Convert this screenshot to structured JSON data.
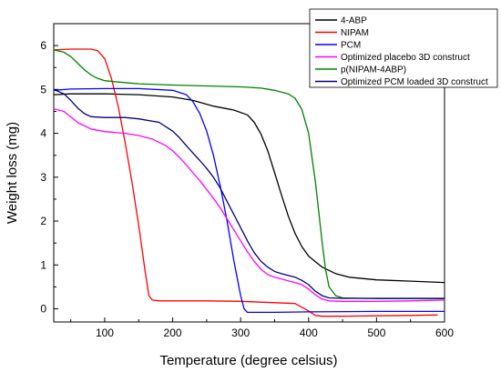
{
  "chart_data": {
    "type": "line",
    "title": "",
    "xlabel": "Temperature (degree celsius)",
    "ylabel": "Weight loss (mg)",
    "xlim": [
      25,
      600
    ],
    "ylim": [
      -0.3,
      6.5
    ],
    "xticks": [
      100,
      200,
      300,
      400,
      500,
      600
    ],
    "yticks": [
      0,
      1,
      2,
      3,
      4,
      5,
      6
    ],
    "grid": false,
    "legend_position": "top-right",
    "series": [
      {
        "name": "4-ABP",
        "color": "#000000",
        "x": [
          25,
          50,
          100,
          150,
          200,
          230,
          260,
          290,
          310,
          320,
          330,
          340,
          350,
          360,
          370,
          380,
          390,
          400,
          420,
          440,
          460,
          500,
          550,
          600
        ],
        "y": [
          4.88,
          4.9,
          4.9,
          4.88,
          4.83,
          4.75,
          4.62,
          4.53,
          4.42,
          4.25,
          3.98,
          3.6,
          3.1,
          2.6,
          2.12,
          1.72,
          1.42,
          1.2,
          0.95,
          0.8,
          0.72,
          0.66,
          0.63,
          0.6
        ]
      },
      {
        "name": "NIPAM",
        "color": "#ff0000",
        "x": [
          25,
          50,
          80,
          90,
          100,
          110,
          120,
          130,
          140,
          150,
          160,
          165,
          170,
          180,
          200,
          250,
          300,
          380,
          400,
          410,
          420,
          450,
          500,
          550,
          590
        ],
        "y": [
          5.9,
          5.92,
          5.92,
          5.88,
          5.7,
          5.25,
          4.6,
          3.8,
          2.9,
          1.9,
          0.8,
          0.3,
          0.2,
          0.18,
          0.18,
          0.18,
          0.17,
          0.12,
          -0.05,
          -0.15,
          -0.17,
          -0.17,
          -0.16,
          -0.15,
          -0.14
        ]
      },
      {
        "name": "PCM",
        "color": "#0000ff",
        "x": [
          25,
          50,
          100,
          150,
          200,
          220,
          230,
          240,
          250,
          260,
          270,
          280,
          290,
          300,
          305,
          310,
          320,
          350,
          400,
          500,
          600
        ],
        "y": [
          4.98,
          5.01,
          5.02,
          5.02,
          4.98,
          4.88,
          4.72,
          4.45,
          4.05,
          3.5,
          2.8,
          2.0,
          1.1,
          0.3,
          0.0,
          -0.08,
          -0.08,
          -0.08,
          -0.07,
          -0.06,
          -0.06
        ]
      },
      {
        "name": "Optimized placebo 3D construct",
        "color": "#ff00ff",
        "x": [
          25,
          40,
          60,
          80,
          100,
          130,
          150,
          170,
          190,
          200,
          210,
          220,
          230,
          240,
          250,
          260,
          270,
          280,
          290,
          300,
          310,
          320,
          330,
          340,
          350,
          360,
          370,
          380,
          390,
          400,
          410,
          420,
          430,
          450,
          500,
          550,
          600
        ],
        "y": [
          4.56,
          4.5,
          4.25,
          4.1,
          4.04,
          4.0,
          3.95,
          3.87,
          3.72,
          3.6,
          3.45,
          3.28,
          3.1,
          2.92,
          2.72,
          2.52,
          2.3,
          2.05,
          1.8,
          1.55,
          1.3,
          1.08,
          0.9,
          0.78,
          0.72,
          0.68,
          0.64,
          0.6,
          0.55,
          0.45,
          0.32,
          0.22,
          0.18,
          0.17,
          0.17,
          0.18,
          0.2
        ]
      },
      {
        "name": "p(NIPAM-4ABP)",
        "color": "#008000",
        "x": [
          25,
          40,
          50,
          60,
          70,
          80,
          90,
          100,
          120,
          150,
          200,
          250,
          300,
          330,
          350,
          370,
          380,
          390,
          400,
          410,
          415,
          420,
          425,
          430,
          440,
          450,
          500,
          550,
          600
        ],
        "y": [
          5.9,
          5.85,
          5.75,
          5.6,
          5.45,
          5.33,
          5.25,
          5.2,
          5.17,
          5.13,
          5.1,
          5.08,
          5.06,
          5.03,
          4.98,
          4.9,
          4.8,
          4.55,
          4.0,
          2.9,
          2.2,
          1.5,
          0.9,
          0.5,
          0.3,
          0.25,
          0.23,
          0.23,
          0.23
        ]
      },
      {
        "name": "Optimized PCM loaded 3D construct",
        "color": "#000080",
        "x": [
          25,
          40,
          50,
          60,
          70,
          80,
          100,
          130,
          150,
          180,
          200,
          210,
          220,
          230,
          240,
          250,
          260,
          270,
          280,
          290,
          300,
          310,
          320,
          330,
          340,
          350,
          360,
          370,
          380,
          390,
          400,
          410,
          420,
          430,
          450,
          500,
          550,
          600
        ],
        "y": [
          5.0,
          4.9,
          4.75,
          4.58,
          4.45,
          4.38,
          4.36,
          4.36,
          4.33,
          4.25,
          4.05,
          3.9,
          3.72,
          3.55,
          3.38,
          3.2,
          3.0,
          2.75,
          2.45,
          2.15,
          1.85,
          1.55,
          1.28,
          1.08,
          0.95,
          0.85,
          0.8,
          0.76,
          0.72,
          0.65,
          0.55,
          0.4,
          0.3,
          0.25,
          0.24,
          0.24,
          0.24,
          0.24
        ]
      }
    ]
  }
}
